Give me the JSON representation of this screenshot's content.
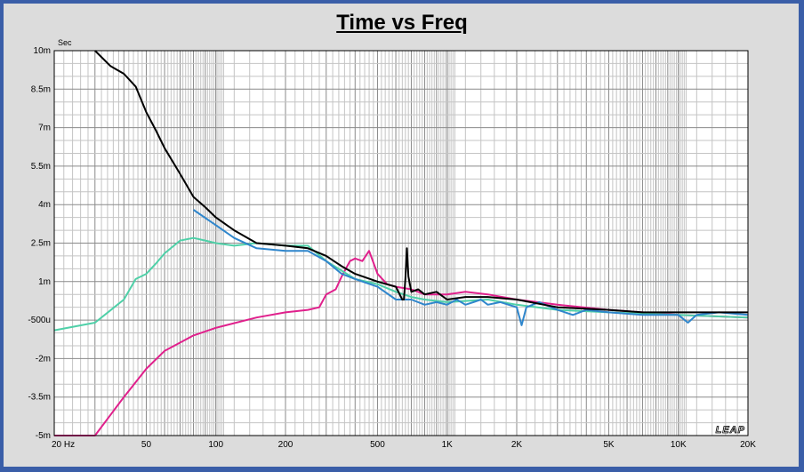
{
  "chart_data": {
    "type": "line",
    "title": "Time vs Freq",
    "ylabel": "Sec",
    "xlabel": "",
    "x_scale": "log",
    "xlim": [
      20,
      20000
    ],
    "ylim": [
      -0.005,
      0.01
    ],
    "grid": true,
    "watermark": "LEAP",
    "x_ticks": [
      {
        "value": 20,
        "label": "20  Hz"
      },
      {
        "value": 50,
        "label": "50"
      },
      {
        "value": 100,
        "label": "100"
      },
      {
        "value": 200,
        "label": "200"
      },
      {
        "value": 500,
        "label": "500"
      },
      {
        "value": 1000,
        "label": "1K"
      },
      {
        "value": 2000,
        "label": "2K"
      },
      {
        "value": 5000,
        "label": "5K"
      },
      {
        "value": 10000,
        "label": "10K"
      },
      {
        "value": 20000,
        "label": "20K"
      }
    ],
    "y_ticks": [
      {
        "value": 0.01,
        "label": "10m"
      },
      {
        "value": 0.0085,
        "label": "8.5m"
      },
      {
        "value": 0.007,
        "label": "7m"
      },
      {
        "value": 0.0055,
        "label": "5.5m"
      },
      {
        "value": 0.004,
        "label": "4m"
      },
      {
        "value": 0.0025,
        "label": "2.5m"
      },
      {
        "value": 0.001,
        "label": "1m"
      },
      {
        "value": -0.0005,
        "label": "-500u"
      },
      {
        "value": -0.002,
        "label": "-2m"
      },
      {
        "value": -0.0035,
        "label": "-3.5m"
      },
      {
        "value": -0.005,
        "label": "-5m"
      }
    ],
    "series": [
      {
        "color": "#e0208c",
        "points": [
          [
            20,
            -0.0065
          ],
          [
            30,
            -0.005
          ],
          [
            40,
            -0.0035
          ],
          [
            50,
            -0.0024
          ],
          [
            60,
            -0.0017
          ],
          [
            80,
            -0.0011
          ],
          [
            100,
            -0.0008
          ],
          [
            150,
            -0.0004
          ],
          [
            200,
            -0.0002
          ],
          [
            250,
            -0.0001
          ],
          [
            280,
            0.0
          ],
          [
            300,
            0.0005
          ],
          [
            330,
            0.0007
          ],
          [
            350,
            0.0012
          ],
          [
            380,
            0.0018
          ],
          [
            400,
            0.0019
          ],
          [
            430,
            0.0018
          ],
          [
            460,
            0.0022
          ],
          [
            500,
            0.0013
          ],
          [
            550,
            0.0009
          ],
          [
            600,
            0.0008
          ],
          [
            700,
            0.0007
          ],
          [
            800,
            0.0005
          ],
          [
            1000,
            0.0005
          ],
          [
            1200,
            0.0006
          ],
          [
            1500,
            0.0005
          ],
          [
            2000,
            0.0003
          ],
          [
            3000,
            0.0001
          ],
          [
            5000,
            -0.0001
          ],
          [
            10000,
            -0.0003
          ],
          [
            20000,
            -0.0004
          ]
        ]
      },
      {
        "color": "#4fd0a8",
        "points": [
          [
            20,
            -0.0009
          ],
          [
            30,
            -0.0006
          ],
          [
            40,
            0.0003
          ],
          [
            45,
            0.0011
          ],
          [
            50,
            0.0013
          ],
          [
            55,
            0.0017
          ],
          [
            60,
            0.0021
          ],
          [
            70,
            0.0026
          ],
          [
            80,
            0.0027
          ],
          [
            90,
            0.0026
          ],
          [
            100,
            0.0025
          ],
          [
            120,
            0.0024
          ],
          [
            150,
            0.0025
          ],
          [
            200,
            0.0024
          ],
          [
            250,
            0.0024
          ],
          [
            300,
            0.0018
          ],
          [
            400,
            0.0011
          ],
          [
            500,
            0.0009
          ],
          [
            600,
            0.0006
          ],
          [
            700,
            0.0004
          ],
          [
            800,
            0.0003
          ],
          [
            1000,
            0.0002
          ],
          [
            1500,
            0.0003
          ],
          [
            2000,
            0.0001
          ],
          [
            3000,
            -0.0001
          ],
          [
            5000,
            -0.0002
          ],
          [
            10000,
            -0.0003
          ],
          [
            20000,
            -0.0004
          ]
        ]
      },
      {
        "color": "#2f86cc",
        "points": [
          [
            80,
            0.0038
          ],
          [
            100,
            0.0032
          ],
          [
            120,
            0.0027
          ],
          [
            150,
            0.0023
          ],
          [
            200,
            0.0022
          ],
          [
            250,
            0.0022
          ],
          [
            300,
            0.0018
          ],
          [
            350,
            0.0013
          ],
          [
            400,
            0.0011
          ],
          [
            500,
            0.0008
          ],
          [
            600,
            0.0003
          ],
          [
            700,
            0.0003
          ],
          [
            800,
            0.0001
          ],
          [
            900,
            0.0002
          ],
          [
            1000,
            0.0001
          ],
          [
            1100,
            0.0003
          ],
          [
            1200,
            0.0001
          ],
          [
            1300,
            0.0002
          ],
          [
            1400,
            0.0003
          ],
          [
            1500,
            0.0001
          ],
          [
            1700,
            0.0002
          ],
          [
            2000,
            0.0
          ],
          [
            2100,
            -0.0007
          ],
          [
            2200,
            0.0
          ],
          [
            2500,
            0.0002
          ],
          [
            3000,
            -0.0001
          ],
          [
            3500,
            -0.0003
          ],
          [
            4000,
            -0.0001
          ],
          [
            5000,
            -0.0002
          ],
          [
            7000,
            -0.0003
          ],
          [
            10000,
            -0.0003
          ],
          [
            11000,
            -0.0006
          ],
          [
            12000,
            -0.0003
          ],
          [
            15000,
            -0.0002
          ],
          [
            20000,
            -0.0003
          ]
        ]
      },
      {
        "color": "#000000",
        "points": [
          [
            30,
            0.01
          ],
          [
            35,
            0.0094
          ],
          [
            40,
            0.0091
          ],
          [
            45,
            0.0086
          ],
          [
            50,
            0.0076
          ],
          [
            55,
            0.0069
          ],
          [
            60,
            0.0062
          ],
          [
            70,
            0.0052
          ],
          [
            80,
            0.0043
          ],
          [
            90,
            0.0039
          ],
          [
            100,
            0.0035
          ],
          [
            120,
            0.003
          ],
          [
            150,
            0.0025
          ],
          [
            200,
            0.0024
          ],
          [
            250,
            0.0023
          ],
          [
            300,
            0.002
          ],
          [
            350,
            0.0016
          ],
          [
            400,
            0.0013
          ],
          [
            500,
            0.001
          ],
          [
            600,
            0.0008
          ],
          [
            640,
            0.0003
          ],
          [
            650,
            0.0003
          ],
          [
            660,
            0.0011
          ],
          [
            670,
            0.0023
          ],
          [
            680,
            0.0012
          ],
          [
            700,
            0.0006
          ],
          [
            750,
            0.0007
          ],
          [
            800,
            0.0005
          ],
          [
            900,
            0.0006
          ],
          [
            1000,
            0.0003
          ],
          [
            1200,
            0.0004
          ],
          [
            1500,
            0.0004
          ],
          [
            2000,
            0.0003
          ],
          [
            3000,
            0.0
          ],
          [
            5000,
            -0.0001
          ],
          [
            7000,
            -0.0002
          ],
          [
            10000,
            -0.0002
          ],
          [
            15000,
            -0.0002
          ],
          [
            20000,
            -0.0002
          ]
        ]
      }
    ]
  }
}
